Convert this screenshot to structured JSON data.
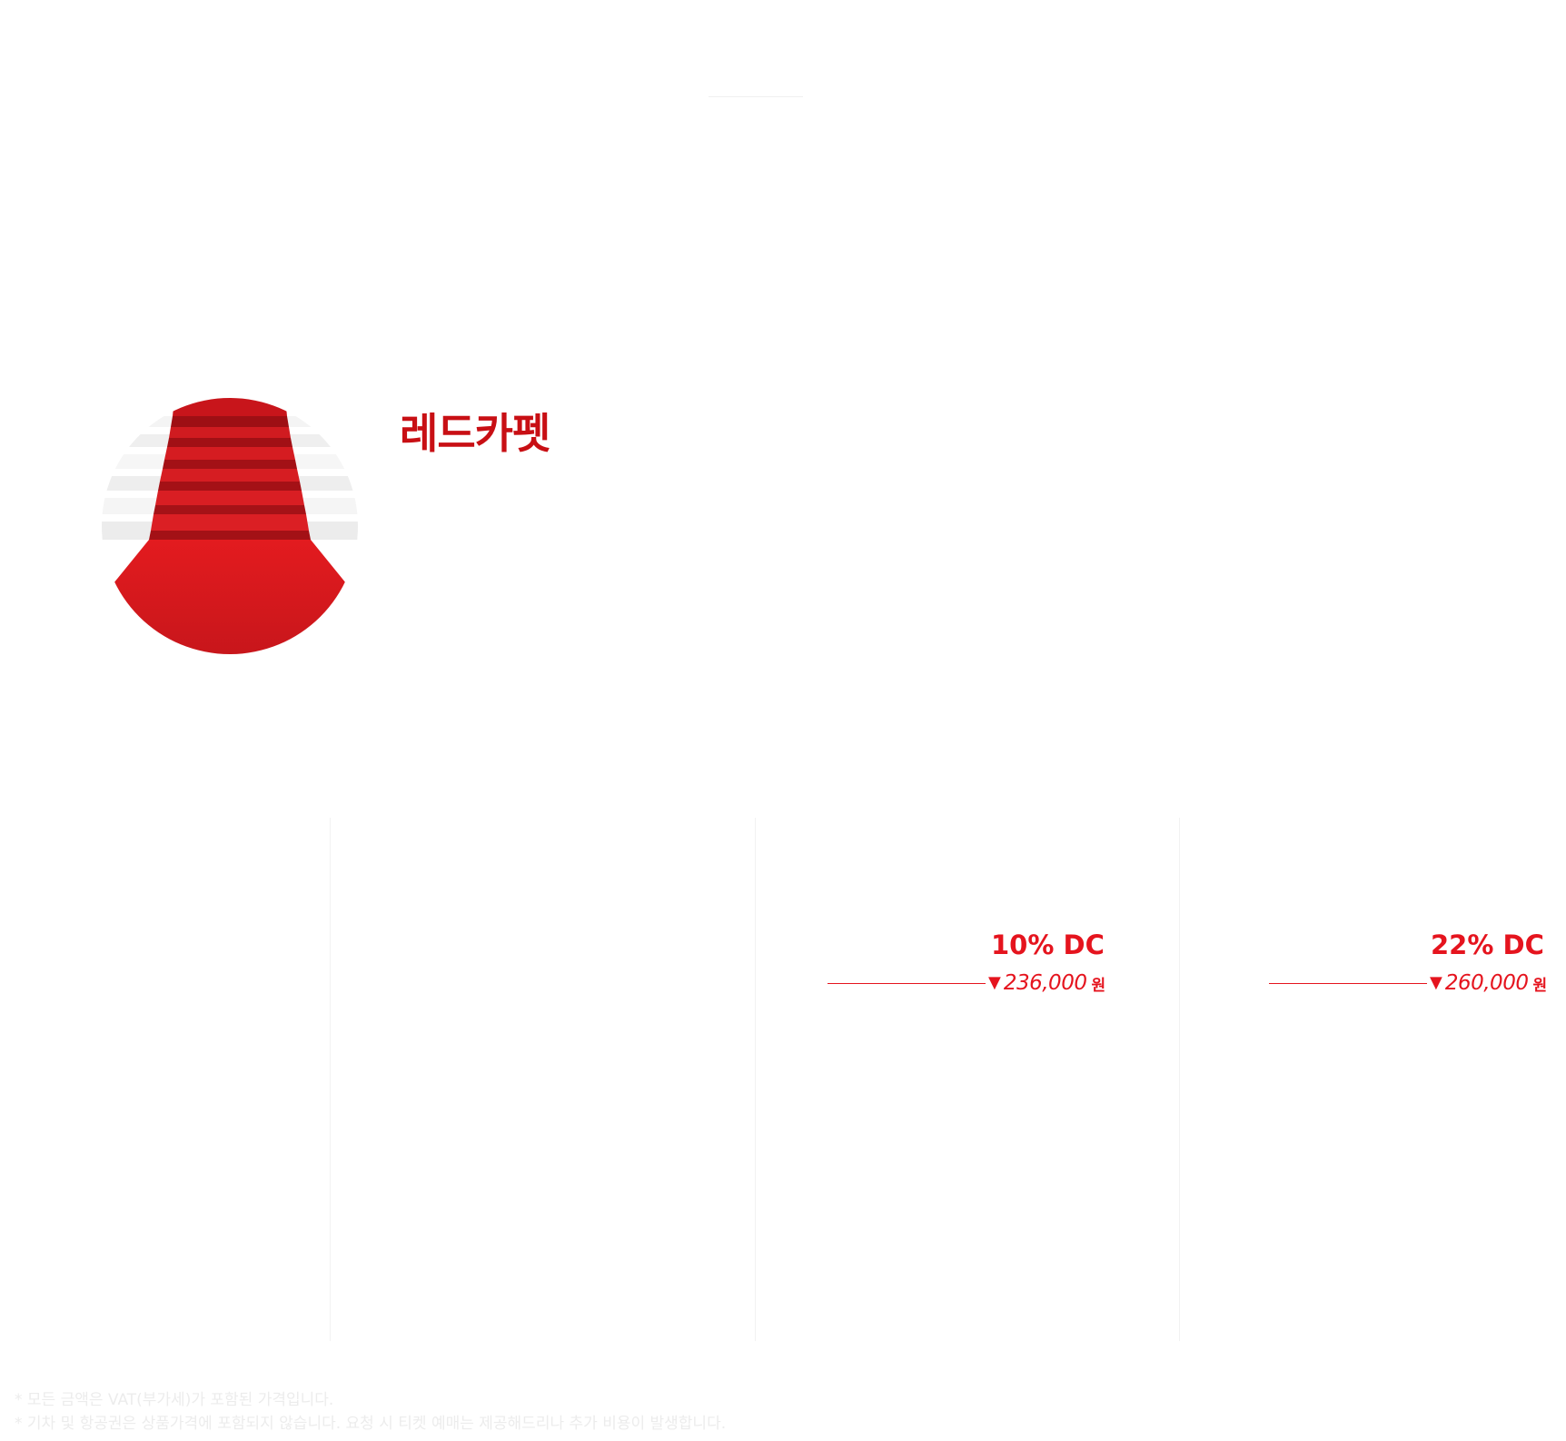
{
  "product": {
    "title": "레드카펫",
    "image_icon": "red-carpet-stairs-image"
  },
  "offers": [
    {
      "discount": "10% DC",
      "price": "236,000",
      "unit": "원",
      "arrow_icon": "triangle-down-icon"
    },
    {
      "discount": "22% DC",
      "price": "260,000",
      "unit": "원",
      "arrow_icon": "triangle-down-icon"
    }
  ],
  "footnotes": [
    "* 모든 금액은 VAT(부가세)가 포함된 가격입니다.",
    "* 기차 및 항공권은 상품가격에 포함되지 않습니다. 요청 시 티켓 예매는 제공해드리나 추가 비용이 발생합니다."
  ],
  "colors": {
    "title": "#c80f14",
    "accent": "#e5141e",
    "footnote": "#ececec",
    "divider": "#f2f2f2"
  }
}
